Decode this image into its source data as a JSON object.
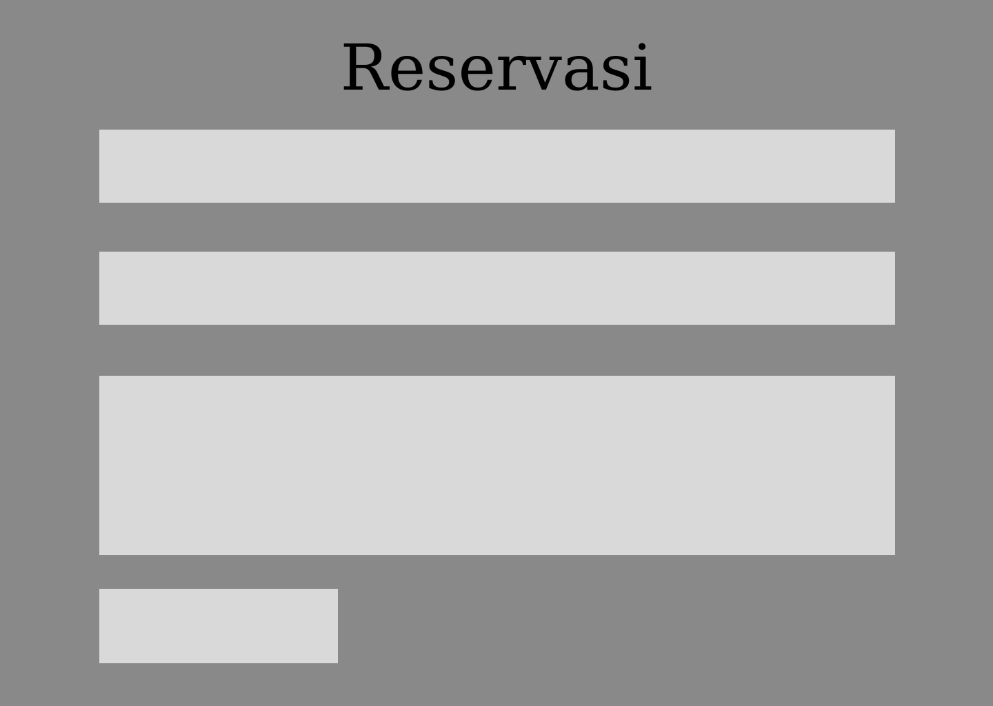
{
  "page": {
    "title": "Reservasi",
    "background_color": "#898989",
    "field_color": "#d9d9d9",
    "title_color": "#000000"
  },
  "form": {
    "field_1": {
      "value": "",
      "placeholder": ""
    },
    "field_2": {
      "value": "",
      "placeholder": ""
    },
    "message": {
      "value": "",
      "placeholder": ""
    },
    "submit_label": ""
  }
}
